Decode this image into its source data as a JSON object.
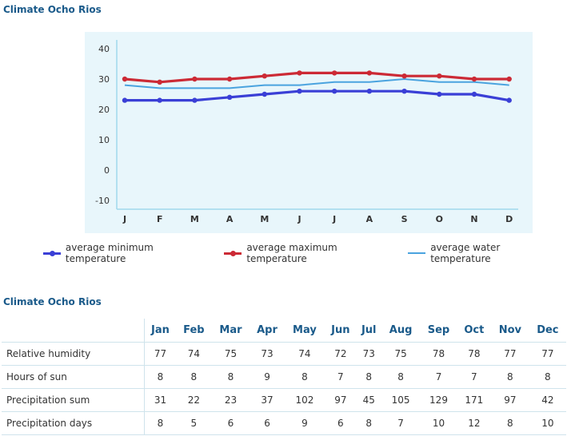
{
  "chart_data": {
    "type": "line",
    "title": "Climate Ocho Rios",
    "categories": [
      "J",
      "F",
      "M",
      "A",
      "M",
      "J",
      "J",
      "A",
      "S",
      "O",
      "N",
      "D"
    ],
    "yticks": [
      40,
      30,
      20,
      10,
      0,
      -10
    ],
    "ylim": [
      -12,
      44
    ],
    "grid": false,
    "legend_position": "bottom",
    "series": [
      {
        "name": "average minimum temperature",
        "color": "#3a3fd6",
        "style": "thick-dots",
        "values": [
          23,
          23,
          23,
          24,
          25,
          26,
          26,
          26,
          26,
          25,
          25,
          23
        ]
      },
      {
        "name": "average maximum temperature",
        "color": "#cc2a35",
        "style": "thick-dots",
        "values": [
          30,
          29,
          30,
          30,
          31,
          32,
          32,
          32,
          31,
          31,
          30,
          30
        ]
      },
      {
        "name": "average water temperature",
        "color": "#4aa3df",
        "style": "thin",
        "values": [
          28,
          27,
          27,
          27,
          28,
          28,
          29,
          29,
          30,
          29,
          29,
          28
        ]
      }
    ]
  },
  "colors": {
    "plot_bg": "#e8f6fb",
    "axis": "#9fd8ec",
    "title": "#1a5a8a"
  },
  "table": {
    "title": "Climate Ocho Rios",
    "columns": [
      "Jan",
      "Feb",
      "Mar",
      "Apr",
      "May",
      "Jun",
      "Jul",
      "Aug",
      "Sep",
      "Oct",
      "Nov",
      "Dec"
    ],
    "rows": [
      {
        "label": "Relative humidity",
        "values": [
          "77",
          "74",
          "75",
          "73",
          "74",
          "72",
          "73",
          "75",
          "78",
          "78",
          "77",
          "77"
        ]
      },
      {
        "label": "Hours of sun",
        "values": [
          "8",
          "8",
          "8",
          "9",
          "8",
          "7",
          "8",
          "8",
          "7",
          "7",
          "8",
          "8"
        ]
      },
      {
        "label": "Precipitation sum",
        "values": [
          "31",
          "22",
          "23",
          "37",
          "102",
          "97",
          "45",
          "105",
          "129",
          "171",
          "97",
          "42"
        ]
      },
      {
        "label": "Precipitation days",
        "values": [
          "8",
          "5",
          "6",
          "6",
          "9",
          "6",
          "8",
          "7",
          "10",
          "12",
          "8",
          "10"
        ]
      }
    ]
  }
}
